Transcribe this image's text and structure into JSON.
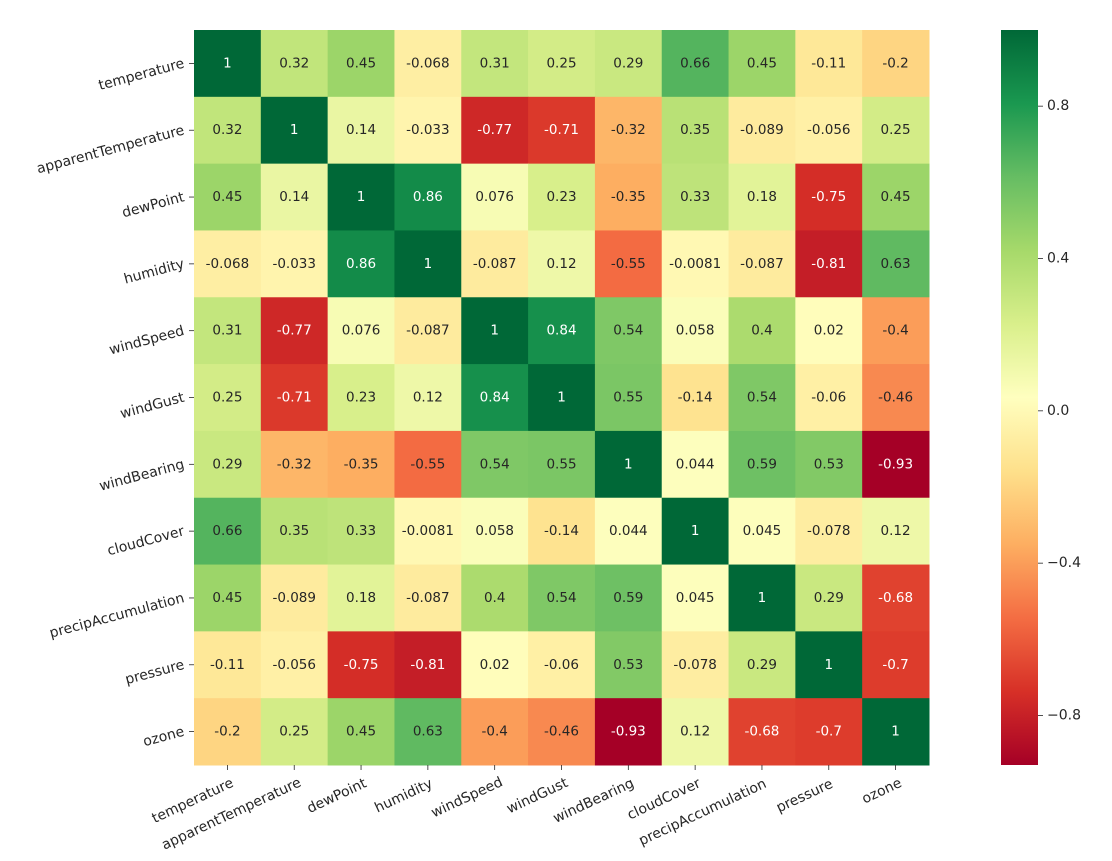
{
  "chart_data": {
    "type": "heatmap",
    "title": "",
    "xlabel": "",
    "ylabel": "",
    "variables": [
      "temperature",
      "apparentTemperature",
      "dewPoint",
      "humidity",
      "windSpeed",
      "windGust",
      "windBearing",
      "cloudCover",
      "precipAccumulation",
      "pressure",
      "ozone"
    ],
    "matrix": [
      [
        1,
        0.32,
        0.45,
        -0.068,
        0.31,
        0.25,
        0.29,
        0.66,
        0.45,
        -0.11,
        -0.2
      ],
      [
        0.32,
        1,
        0.14,
        -0.033,
        -0.77,
        -0.71,
        -0.32,
        0.35,
        -0.089,
        -0.056,
        0.25
      ],
      [
        0.45,
        0.14,
        1,
        0.86,
        0.076,
        0.23,
        -0.35,
        0.33,
        0.18,
        -0.75,
        0.45
      ],
      [
        -0.068,
        -0.033,
        0.86,
        1,
        -0.087,
        0.12,
        -0.55,
        -0.0081,
        -0.087,
        -0.81,
        0.63
      ],
      [
        0.31,
        -0.77,
        0.076,
        -0.087,
        1,
        0.84,
        0.54,
        0.058,
        0.4,
        0.02,
        -0.4
      ],
      [
        0.25,
        -0.71,
        0.23,
        0.12,
        0.84,
        1,
        0.55,
        -0.14,
        0.54,
        -0.06,
        -0.46
      ],
      [
        0.29,
        -0.32,
        -0.35,
        -0.55,
        0.54,
        0.55,
        1,
        0.044,
        0.59,
        0.53,
        -0.93
      ],
      [
        0.66,
        0.35,
        0.33,
        -0.0081,
        0.058,
        -0.14,
        0.044,
        1,
        0.045,
        -0.078,
        0.12
      ],
      [
        0.45,
        -0.089,
        0.18,
        -0.087,
        0.4,
        0.54,
        0.59,
        0.045,
        1,
        0.29,
        -0.68
      ],
      [
        -0.11,
        -0.056,
        -0.75,
        -0.81,
        0.02,
        -0.06,
        0.53,
        -0.078,
        0.29,
        1,
        -0.7
      ],
      [
        -0.2,
        0.25,
        0.45,
        0.63,
        -0.4,
        -0.46,
        -0.93,
        0.12,
        -0.68,
        -0.7,
        1
      ]
    ],
    "colorbar": {
      "colormap": "RdYlGn",
      "vmin": -0.93,
      "vmax": 1,
      "ticks": [
        -0.8,
        -0.4,
        0.0,
        0.4,
        0.8
      ],
      "tick_labels": [
        "−0.8",
        "−0.4",
        "0.0",
        "0.4",
        "0.8"
      ]
    },
    "annotations": true,
    "grid": false,
    "legend": "colorbar-right"
  }
}
